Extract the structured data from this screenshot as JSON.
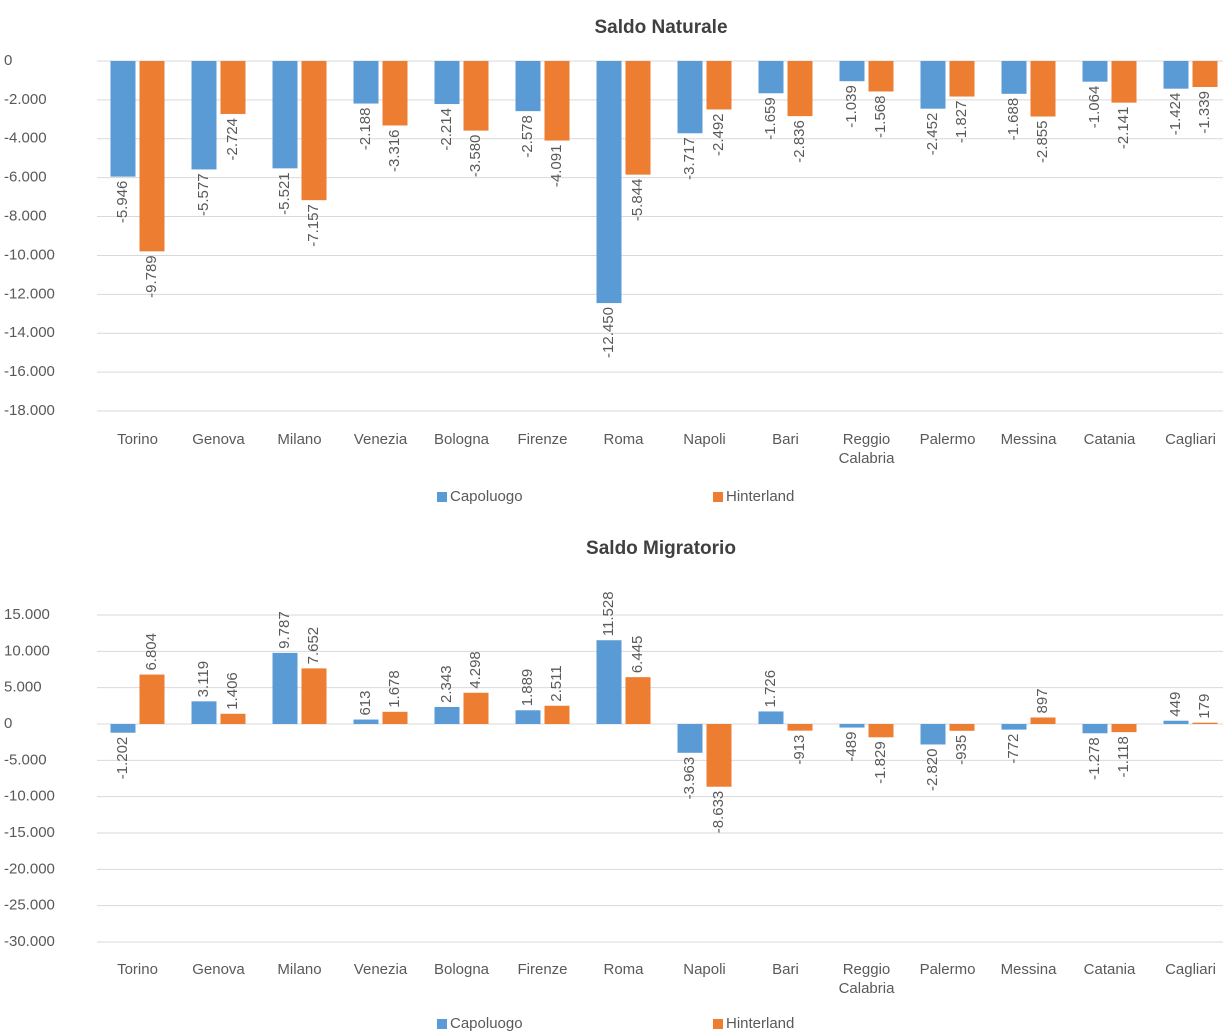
{
  "chart_data": [
    {
      "type": "bar",
      "title": "Saldo Naturale",
      "categories": [
        "Torino",
        "Genova",
        "Milano",
        "Venezia",
        "Bologna",
        "Firenze",
        "Roma",
        "Napoli",
        "Bari",
        "Reggio Calabria",
        "Palermo",
        "Messina",
        "Catania",
        "Cagliari"
      ],
      "series": [
        {
          "name": "Capoluogo",
          "color": "#5b9bd5",
          "values": [
            -5946,
            -5577,
            -5521,
            -2188,
            -2214,
            -2578,
            -12450,
            -3717,
            -1659,
            -1039,
            -2452,
            -1688,
            -1064,
            -1424
          ],
          "value_labels": [
            "-5.946",
            "-5.577",
            "-5.521",
            "-2.188",
            "-2.214",
            "-2.578",
            "-12.450",
            "-3.717",
            "-1.659",
            "-1.039",
            "-2.452",
            "-1.688",
            "-1.064",
            "-1.424"
          ]
        },
        {
          "name": "Hinterland",
          "color": "#ed7d31",
          "values": [
            -9789,
            -2724,
            -7157,
            -3316,
            -3580,
            -4091,
            -5844,
            -2492,
            -2836,
            -1568,
            -1827,
            -2855,
            -2141,
            -1339
          ],
          "value_labels": [
            "-9.789",
            "-2.724",
            "-7.157",
            "-3.316",
            "-3.580",
            "-4.091",
            "-5.844",
            "-2.492",
            "-2.836",
            "-1.568",
            "-1.827",
            "-2.855",
            "-2.141",
            "-1.339"
          ]
        }
      ],
      "ylim": [
        -18000,
        0
      ],
      "yticks": [
        0,
        {
          "value": -2000,
          "label": "-2.000"
        },
        {
          "value": -4000,
          "label": "-4.000"
        },
        {
          "value": -6000,
          "label": "-6.000"
        },
        {
          "value": -8000,
          "label": "-8.000"
        },
        {
          "value": -10000,
          "label": "-10.000"
        },
        {
          "value": -12000,
          "label": "-12.000"
        },
        {
          "value": -14000,
          "label": "-14.000"
        },
        {
          "value": -16000,
          "label": "-16.000"
        },
        {
          "value": -18000,
          "label": "-18.000"
        }
      ],
      "grid": true,
      "legend": "bottom"
    },
    {
      "type": "bar",
      "title": "Saldo Migratorio",
      "categories": [
        "Torino",
        "Genova",
        "Milano",
        "Venezia",
        "Bologna",
        "Firenze",
        "Roma",
        "Napoli",
        "Bari",
        "Reggio Calabria",
        "Palermo",
        "Messina",
        "Catania",
        "Cagliari"
      ],
      "series": [
        {
          "name": "Capoluogo",
          "color": "#5b9bd5",
          "values": [
            -1202,
            3119,
            9787,
            613,
            2343,
            1889,
            11528,
            -3963,
            1726,
            -489,
            -2820,
            -772,
            -1278,
            449
          ],
          "value_labels": [
            "-1.202",
            "3.119",
            "9.787",
            "613",
            "2.343",
            "1.889",
            "11.528",
            "-3.963",
            "1.726",
            "-489",
            "-2.820",
            "-772",
            "-1.278",
            "449"
          ]
        },
        {
          "name": "Hinterland",
          "color": "#ed7d31",
          "values": [
            6804,
            1406,
            7652,
            1678,
            4298,
            2511,
            6445,
            -8633,
            -913,
            -1829,
            -935,
            897,
            -1118,
            179
          ],
          "value_labels": [
            "6.804",
            "1.406",
            "7.652",
            "1.678",
            "4.298",
            "2.511",
            "6.445",
            "-8.633",
            "-913",
            "-1.829",
            "-935",
            "897",
            "-1.118",
            "179"
          ]
        }
      ],
      "ylim": [
        -30000,
        15000
      ],
      "yticks": [
        {
          "value": 15000,
          "label": "15.000"
        },
        {
          "value": 10000,
          "label": "10.000"
        },
        {
          "value": 5000,
          "label": "5.000"
        },
        0,
        {
          "value": -5000,
          "label": "-5.000"
        },
        {
          "value": -10000,
          "label": "-10.000"
        },
        {
          "value": -15000,
          "label": "-15.000"
        },
        {
          "value": -20000,
          "label": "-20.000"
        },
        {
          "value": -25000,
          "label": "-25.000"
        },
        {
          "value": -30000,
          "label": "-30.000"
        }
      ],
      "grid": true,
      "legend": "bottom"
    }
  ]
}
